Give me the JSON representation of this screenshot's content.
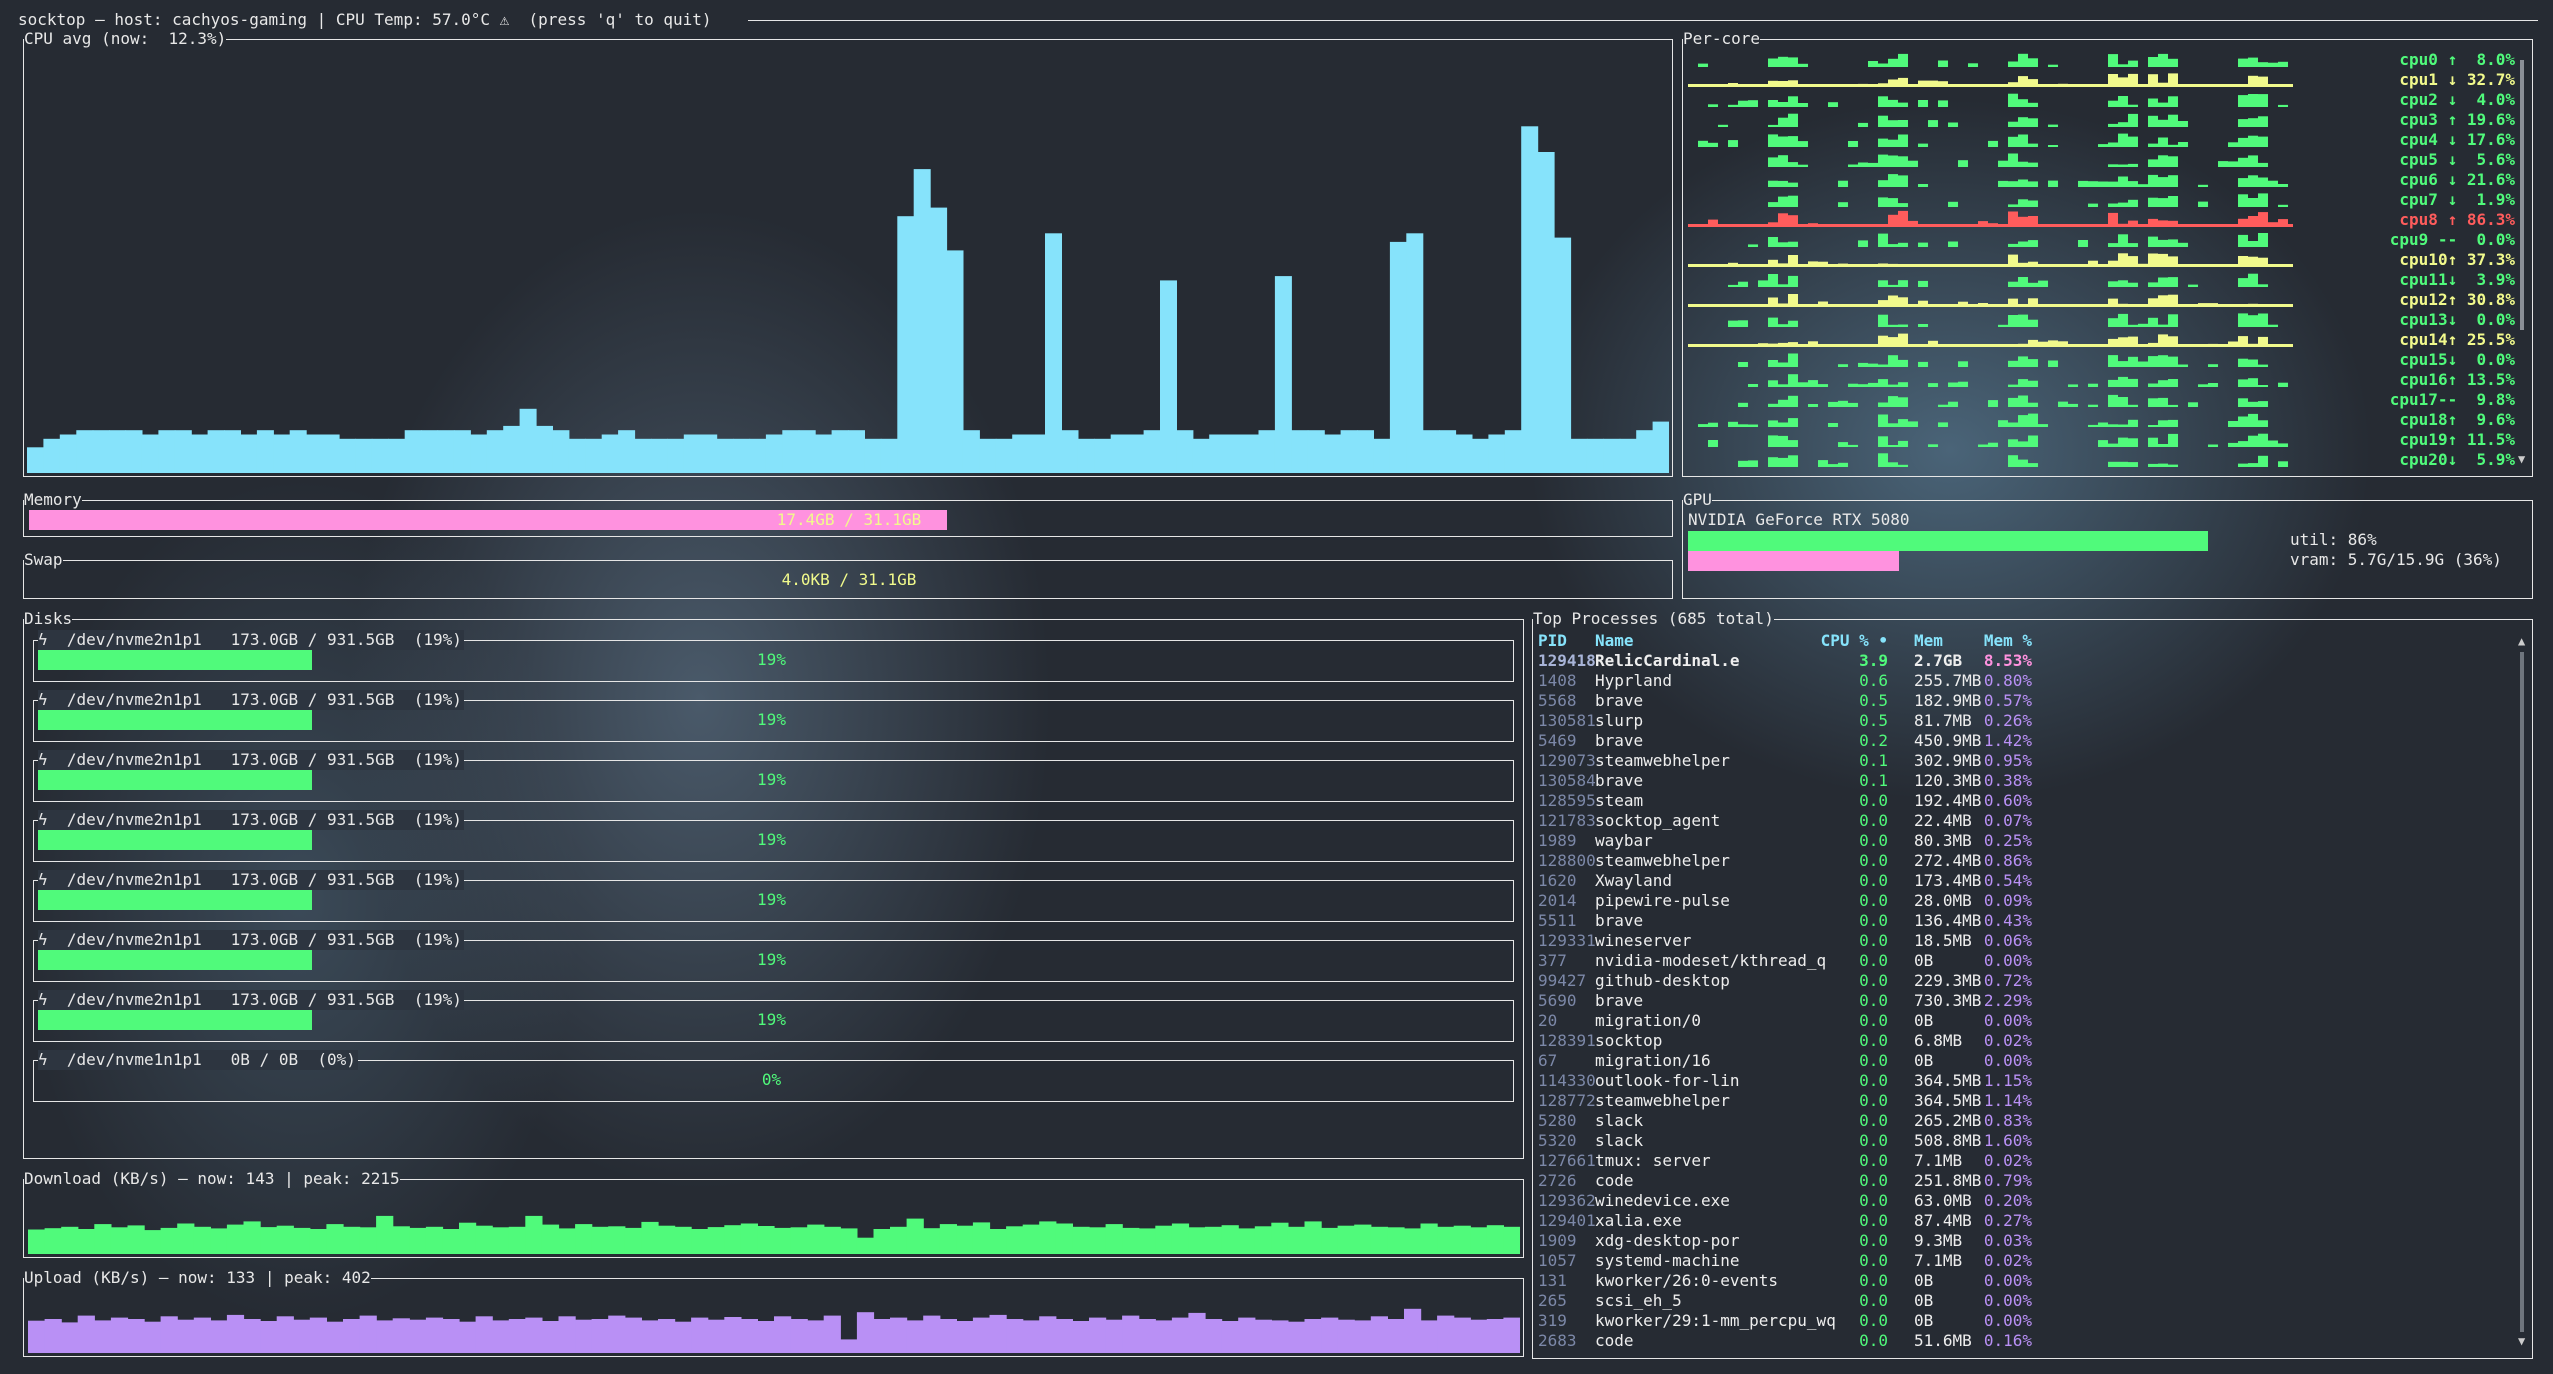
{
  "header": {
    "title": "socktop — host: cachyos-gaming | CPU Temp: 57.0°C ⚠  (press 'q' to quit)"
  },
  "colors": {
    "cpu": "#86e3fb",
    "green": "#50fa7b",
    "pink": "#ff92df",
    "purple": "#b990f5",
    "yellow": "#f1fa8c",
    "red": "#ff5c5c",
    "border": "#e6e6e6"
  },
  "cpu_avg": {
    "title": "CPU avg (now:  12.3%)"
  },
  "per_core": {
    "title": "Per-core",
    "cores": [
      {
        "label": "cpu0 ↑  8.0%",
        "value": 8.0,
        "level": "low"
      },
      {
        "label": "cpu1 ↓ 32.7%",
        "value": 32.7,
        "level": "mid"
      },
      {
        "label": "cpu2 ↓  4.0%",
        "value": 4.0,
        "level": "low"
      },
      {
        "label": "cpu3 ↑ 19.6%",
        "value": 19.6,
        "level": "low"
      },
      {
        "label": "cpu4 ↓ 17.6%",
        "value": 17.6,
        "level": "low"
      },
      {
        "label": "cpu5 ↓  5.6%",
        "value": 5.6,
        "level": "low"
      },
      {
        "label": "cpu6 ↓ 21.6%",
        "value": 21.6,
        "level": "low"
      },
      {
        "label": "cpu7 ↓  1.9%",
        "value": 1.9,
        "level": "low"
      },
      {
        "label": "cpu8 ↑ 86.3%",
        "value": 86.3,
        "level": "high"
      },
      {
        "label": "cpu9 --  0.0%",
        "value": 0.0,
        "level": "low"
      },
      {
        "label": "cpu10↑ 37.3%",
        "value": 37.3,
        "level": "mid"
      },
      {
        "label": "cpu11↓  3.9%",
        "value": 3.9,
        "level": "low"
      },
      {
        "label": "cpu12↑ 30.8%",
        "value": 30.8,
        "level": "mid"
      },
      {
        "label": "cpu13↓  0.0%",
        "value": 0.0,
        "level": "low"
      },
      {
        "label": "cpu14↑ 25.5%",
        "value": 25.5,
        "level": "mid"
      },
      {
        "label": "cpu15↓  0.0%",
        "value": 0.0,
        "level": "low"
      },
      {
        "label": "cpu16↑ 13.5%",
        "value": 13.5,
        "level": "low"
      },
      {
        "label": "cpu17--  9.8%",
        "value": 9.8,
        "level": "low"
      },
      {
        "label": "cpu18↑  9.6%",
        "value": 9.6,
        "level": "low"
      },
      {
        "label": "cpu19↑ 11.5%",
        "value": 11.5,
        "level": "low"
      },
      {
        "label": "cpu20↓  5.9%",
        "value": 5.9,
        "level": "low"
      }
    ]
  },
  "memory": {
    "title": "Memory",
    "text": "17.4GB / 31.1GB",
    "percent": 56
  },
  "swap": {
    "title": "Swap",
    "text": "4.0KB / 31.1GB",
    "percent": 0
  },
  "gpu": {
    "title": "GPU",
    "name": "NVIDIA GeForce RTX 5080",
    "util_text": "util: 86%",
    "vram_text": "vram: 5.7G/15.9G (36%)",
    "util_percent": 86,
    "vram_percent": 36
  },
  "disks": {
    "title": "Disks",
    "items": [
      {
        "icon": "lightning-icon",
        "label": "/dev/nvme2n1p1   173.0GB / 931.5GB  (19%)",
        "gauge": "19%",
        "percent": 19
      },
      {
        "icon": "lightning-icon",
        "label": "/dev/nvme2n1p1   173.0GB / 931.5GB  (19%)",
        "gauge": "19%",
        "percent": 19
      },
      {
        "icon": "lightning-icon",
        "label": "/dev/nvme2n1p1   173.0GB / 931.5GB  (19%)",
        "gauge": "19%",
        "percent": 19
      },
      {
        "icon": "lightning-icon",
        "label": "/dev/nvme2n1p1   173.0GB / 931.5GB  (19%)",
        "gauge": "19%",
        "percent": 19
      },
      {
        "icon": "lightning-icon",
        "label": "/dev/nvme2n1p1   173.0GB / 931.5GB  (19%)",
        "gauge": "19%",
        "percent": 19
      },
      {
        "icon": "lightning-icon",
        "label": "/dev/nvme2n1p1   173.0GB / 931.5GB  (19%)",
        "gauge": "19%",
        "percent": 19
      },
      {
        "icon": "lightning-icon",
        "label": "/dev/nvme2n1p1   173.0GB / 931.5GB  (19%)",
        "gauge": "19%",
        "percent": 19
      },
      {
        "icon": "lightning-icon",
        "label": "/dev/nvme1n1p1   0B / 0B  (0%)",
        "gauge": "0%",
        "percent": 0
      }
    ]
  },
  "download": {
    "title": "Download (KB/s) — now: 143 | peak: 2215"
  },
  "upload": {
    "title": "Upload (KB/s) — now: 133 | peak: 402"
  },
  "processes": {
    "title": "Top Processes (685 total)",
    "headers": [
      "PID",
      "Name",
      "CPU % •",
      "Mem",
      "Mem %"
    ],
    "rows": [
      [
        "129418",
        "RelicCardinal.e",
        "3.9",
        "2.7GB",
        "8.53%"
      ],
      [
        "1408",
        "Hyprland",
        "0.6",
        "255.7MB",
        "0.80%"
      ],
      [
        "5568",
        "brave",
        "0.5",
        "182.9MB",
        "0.57%"
      ],
      [
        "130581",
        "slurp",
        "0.5",
        "81.7MB",
        "0.26%"
      ],
      [
        "5469",
        "brave",
        "0.2",
        "450.9MB",
        "1.42%"
      ],
      [
        "129073",
        "steamwebhelper",
        "0.1",
        "302.9MB",
        "0.95%"
      ],
      [
        "130584",
        "brave",
        "0.1",
        "120.3MB",
        "0.38%"
      ],
      [
        "128595",
        "steam",
        "0.0",
        "192.4MB",
        "0.60%"
      ],
      [
        "121783",
        "socktop_agent",
        "0.0",
        "22.4MB",
        "0.07%"
      ],
      [
        "1989",
        "waybar",
        "0.0",
        "80.3MB",
        "0.25%"
      ],
      [
        "128800",
        "steamwebhelper",
        "0.0",
        "272.4MB",
        "0.86%"
      ],
      [
        "1620",
        "Xwayland",
        "0.0",
        "173.4MB",
        "0.54%"
      ],
      [
        "2014",
        "pipewire-pulse",
        "0.0",
        "28.0MB",
        "0.09%"
      ],
      [
        "5511",
        "brave",
        "0.0",
        "136.4MB",
        "0.43%"
      ],
      [
        "129331",
        "wineserver",
        "0.0",
        "18.5MB",
        "0.06%"
      ],
      [
        "377",
        "nvidia-modeset/kthread_q",
        "0.0",
        "0B",
        "0.00%"
      ],
      [
        "99427",
        "github-desktop",
        "0.0",
        "229.3MB",
        "0.72%"
      ],
      [
        "5690",
        "brave",
        "0.0",
        "730.3MB",
        "2.29%"
      ],
      [
        "20",
        "migration/0",
        "0.0",
        "0B",
        "0.00%"
      ],
      [
        "128391",
        "socktop",
        "0.0",
        "6.8MB",
        "0.02%"
      ],
      [
        "67",
        "migration/16",
        "0.0",
        "0B",
        "0.00%"
      ],
      [
        "114330",
        "outlook-for-lin",
        "0.0",
        "364.5MB",
        "1.15%"
      ],
      [
        "128772",
        "steamwebhelper",
        "0.0",
        "364.5MB",
        "1.14%"
      ],
      [
        "5280",
        "slack",
        "0.0",
        "265.2MB",
        "0.83%"
      ],
      [
        "5320",
        "slack",
        "0.0",
        "508.8MB",
        "1.60%"
      ],
      [
        "127661",
        "tmux: server",
        "0.0",
        "7.1MB",
        "0.02%"
      ],
      [
        "2726",
        "code",
        "0.0",
        "251.8MB",
        "0.79%"
      ],
      [
        "129362",
        "winedevice.exe",
        "0.0",
        "63.0MB",
        "0.20%"
      ],
      [
        "129401",
        "xalia.exe",
        "0.0",
        "87.4MB",
        "0.27%"
      ],
      [
        "1909",
        "xdg-desktop-por",
        "0.0",
        "9.3MB",
        "0.03%"
      ],
      [
        "1057",
        "systemd-machine",
        "0.0",
        "7.1MB",
        "0.02%"
      ],
      [
        "131",
        "kworker/26:0-events",
        "0.0",
        "0B",
        "0.00%"
      ],
      [
        "265",
        "scsi_eh_5",
        "0.0",
        "0B",
        "0.00%"
      ],
      [
        "319",
        "kworker/29:1-mm_percpu_wq",
        "0.0",
        "0B",
        "0.00%"
      ],
      [
        "2683",
        "code",
        "0.0",
        "51.6MB",
        "0.16%"
      ]
    ]
  },
  "chart_data": [
    {
      "type": "bar",
      "ylim": [
        0,
        100
      ],
      "ylabel": "",
      "values": [
        6,
        8,
        9,
        10,
        10,
        10,
        10,
        9,
        10,
        10,
        9,
        10,
        10,
        9,
        10,
        9,
        10,
        9,
        9,
        8,
        8,
        8,
        8,
        10,
        10,
        10,
        10,
        9,
        10,
        11,
        15,
        11,
        10,
        8,
        8,
        9,
        10,
        8,
        8,
        8,
        9,
        9,
        8,
        8,
        8,
        9,
        10,
        10,
        9,
        10,
        10,
        8,
        8,
        60,
        71,
        62,
        52,
        10,
        8,
        8,
        9,
        9,
        56,
        10,
        8,
        8,
        9,
        9,
        10,
        45,
        10,
        8,
        9,
        9,
        9,
        10,
        46,
        10,
        10,
        9,
        10,
        10,
        8,
        54,
        56,
        10,
        10,
        9,
        8,
        9,
        10,
        81,
        75,
        55,
        8,
        8,
        8,
        8,
        10,
        12
      ]
    },
    {
      "type": "bar",
      "ylim": [
        0,
        250
      ],
      "values": [
        90,
        95,
        100,
        92,
        110,
        98,
        105,
        88,
        96,
        112,
        100,
        94,
        108,
        120,
        99,
        104,
        96,
        92,
        110,
        100,
        98,
        140,
        102,
        96,
        100,
        92,
        115,
        104,
        98,
        100,
        140,
        108,
        94,
        110,
        100,
        102,
        96,
        118,
        104,
        100,
        92,
        99,
        106,
        112,
        103,
        96,
        98,
        108,
        100,
        94,
        60,
        92,
        100,
        130,
        95,
        110,
        104,
        116,
        92,
        102,
        108,
        120,
        112,
        100,
        98,
        110,
        96,
        94,
        104,
        112,
        98,
        100,
        106,
        94,
        102,
        115,
        100,
        120,
        96,
        104,
        108,
        100,
        98,
        94,
        112,
        100,
        104,
        98,
        106,
        100
      ]
    },
    {
      "type": "bar",
      "ylim": [
        0,
        200
      ],
      "values": [
        95,
        100,
        90,
        110,
        96,
        104,
        100,
        92,
        108,
        98,
        104,
        96,
        112,
        100,
        94,
        108,
        98,
        104,
        92,
        100,
        110,
        96,
        102,
        98,
        104,
        100,
        92,
        108,
        96,
        100,
        104,
        94,
        108,
        98,
        100,
        110,
        104,
        96,
        100,
        92,
        104,
        98,
        106,
        100,
        94,
        108,
        100,
        96,
        110,
        40,
        120,
        100,
        104,
        96,
        110,
        100,
        94,
        104,
        112,
        100,
        96,
        108,
        100,
        94,
        104,
        98,
        110,
        100,
        96,
        104,
        118,
        100,
        94,
        104,
        98,
        96,
        92,
        100,
        104,
        98,
        96,
        108,
        100,
        130,
        96,
        110,
        104,
        98,
        100,
        104
      ]
    }
  ]
}
